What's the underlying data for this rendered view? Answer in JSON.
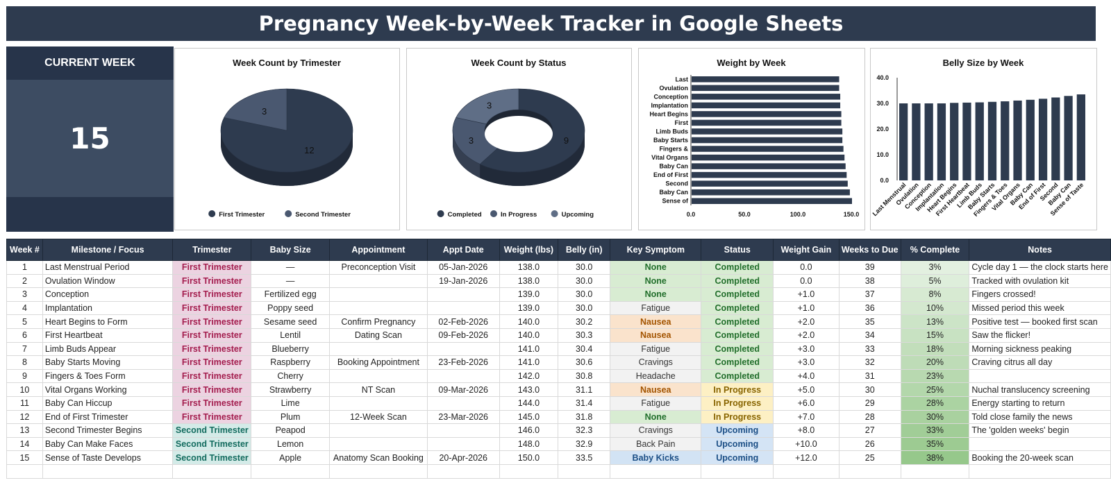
{
  "title": "Pregnancy Week-by-Week Tracker in Google Sheets",
  "current_week": {
    "label": "CURRENT WEEK",
    "value": "15"
  },
  "colors": {
    "navy": "#2e3b4f",
    "slate": "#4a5870",
    "steel": "#5f6e86"
  },
  "chart_data": [
    {
      "type": "pie",
      "title": "Week Count by Trimester",
      "categories": [
        "First Trimester",
        "Second Trimester"
      ],
      "values": [
        12,
        3
      ],
      "legend": "bottom"
    },
    {
      "type": "pie",
      "title": "Week Count by Status",
      "categories": [
        "Completed",
        "In Progress",
        "Upcoming"
      ],
      "values": [
        9,
        3,
        3
      ],
      "legend": "bottom"
    },
    {
      "type": "bar",
      "orientation": "horizontal",
      "title": "Weight by Week",
      "categories": [
        "Last",
        "Ovulation",
        "Conception",
        "Implantation",
        "Heart Begins",
        "First",
        "Limb Buds",
        "Baby Starts",
        "Fingers &",
        "Vital Organs",
        "Baby Can",
        "End of First",
        "Second",
        "Baby Can",
        "Sense of"
      ],
      "values": [
        138.0,
        138.0,
        139.0,
        139.0,
        140.0,
        140.0,
        141.0,
        141.0,
        142.0,
        143.0,
        144.0,
        145.0,
        146.0,
        148.0,
        150.0
      ],
      "ticks": [
        "0.0",
        "50.0",
        "100.0",
        "150.0"
      ],
      "xlim": [
        0,
        150
      ]
    },
    {
      "type": "bar",
      "title": "Belly Size by Week",
      "categories": [
        "Last Menstrual",
        "Ovulation",
        "Conception",
        "Implantation",
        "Heart Begins",
        "First Heartbeat",
        "Limb Buds",
        "Baby Starts",
        "Fingers & Toes",
        "Vital Organs",
        "Baby Can",
        "End of First",
        "Second",
        "Baby Can",
        "Sense of Taste"
      ],
      "values": [
        30.0,
        30.0,
        30.0,
        30.0,
        30.2,
        30.3,
        30.4,
        30.6,
        30.8,
        31.1,
        31.4,
        31.8,
        32.3,
        32.9,
        33.5
      ],
      "ticks": [
        "0.0",
        "10.0",
        "20.0",
        "30.0",
        "40.0"
      ],
      "ylim": [
        0,
        40
      ]
    }
  ],
  "table": {
    "headers": [
      "Week #",
      "Milestone / Focus",
      "Trimester",
      "Baby Size",
      "Appointment",
      "Appt Date",
      "Weight (lbs)",
      "Belly (in)",
      "Key Symptom",
      "Status",
      "Weight Gain",
      "Weeks to Due",
      "% Complete",
      "Notes"
    ],
    "rows": [
      [
        "1",
        "Last Menstrual Period",
        "First Trimester",
        "—",
        "Preconception Visit",
        "05-Jan-2026",
        "138.0",
        "30.0",
        "None",
        "Completed",
        "0.0",
        "39",
        "3%",
        "Cycle day 1 — the clock starts here"
      ],
      [
        "2",
        "Ovulation Window",
        "First Trimester",
        "—",
        "",
        "19-Jan-2026",
        "138.0",
        "30.0",
        "None",
        "Completed",
        "0.0",
        "38",
        "5%",
        "Tracked with ovulation kit"
      ],
      [
        "3",
        "Conception",
        "First Trimester",
        "Fertilized egg",
        "",
        "",
        "139.0",
        "30.0",
        "None",
        "Completed",
        "+1.0",
        "37",
        "8%",
        "Fingers crossed!"
      ],
      [
        "4",
        "Implantation",
        "First Trimester",
        "Poppy seed",
        "",
        "",
        "139.0",
        "30.0",
        "Fatigue",
        "Completed",
        "+1.0",
        "36",
        "10%",
        "Missed period this week"
      ],
      [
        "5",
        "Heart Begins to Form",
        "First Trimester",
        "Sesame seed",
        "Confirm Pregnancy",
        "02-Feb-2026",
        "140.0",
        "30.2",
        "Nausea",
        "Completed",
        "+2.0",
        "35",
        "13%",
        "Positive test — booked first scan"
      ],
      [
        "6",
        "First Heartbeat",
        "First Trimester",
        "Lentil",
        "Dating Scan",
        "09-Feb-2026",
        "140.0",
        "30.3",
        "Nausea",
        "Completed",
        "+2.0",
        "34",
        "15%",
        "Saw the flicker!"
      ],
      [
        "7",
        "Limb Buds Appear",
        "First Trimester",
        "Blueberry",
        "",
        "",
        "141.0",
        "30.4",
        "Fatigue",
        "Completed",
        "+3.0",
        "33",
        "18%",
        "Morning sickness peaking"
      ],
      [
        "8",
        "Baby Starts Moving",
        "First Trimester",
        "Raspberry",
        "Booking Appointment",
        "23-Feb-2026",
        "141.0",
        "30.6",
        "Cravings",
        "Completed",
        "+3.0",
        "32",
        "20%",
        "Craving citrus all day"
      ],
      [
        "9",
        "Fingers & Toes Form",
        "First Trimester",
        "Cherry",
        "",
        "",
        "142.0",
        "30.8",
        "Headache",
        "Completed",
        "+4.0",
        "31",
        "23%",
        ""
      ],
      [
        "10",
        "Vital Organs Working",
        "First Trimester",
        "Strawberry",
        "NT Scan",
        "09-Mar-2026",
        "143.0",
        "31.1",
        "Nausea",
        "In Progress",
        "+5.0",
        "30",
        "25%",
        "Nuchal translucency screening"
      ],
      [
        "11",
        "Baby Can Hiccup",
        "First Trimester",
        "Lime",
        "",
        "",
        "144.0",
        "31.4",
        "Fatigue",
        "In Progress",
        "+6.0",
        "29",
        "28%",
        "Energy starting to return"
      ],
      [
        "12",
        "End of First Trimester",
        "First Trimester",
        "Plum",
        "12-Week Scan",
        "23-Mar-2026",
        "145.0",
        "31.8",
        "None",
        "In Progress",
        "+7.0",
        "28",
        "30%",
        "Told close family the news"
      ],
      [
        "13",
        "Second Trimester Begins",
        "Second Trimester",
        "Peapod",
        "",
        "",
        "146.0",
        "32.3",
        "Cravings",
        "Upcoming",
        "+8.0",
        "27",
        "33%",
        "The 'golden weeks' begin"
      ],
      [
        "14",
        "Baby Can Make Faces",
        "Second Trimester",
        "Lemon",
        "",
        "",
        "148.0",
        "32.9",
        "Back Pain",
        "Upcoming",
        "+10.0",
        "26",
        "35%",
        ""
      ],
      [
        "15",
        "Sense of Taste Develops",
        "Second Trimester",
        "Apple",
        "Anatomy Scan Booking",
        "20-Apr-2026",
        "150.0",
        "33.5",
        "Baby Kicks",
        "Upcoming",
        "+12.0",
        "25",
        "38%",
        "Booking the 20-week scan"
      ]
    ],
    "progress_fraction": [
      0.03,
      0.05,
      0.08,
      0.1,
      0.13,
      0.15,
      0.18,
      0.2,
      0.23,
      0.25,
      0.28,
      0.3,
      0.33,
      0.35,
      0.38
    ]
  }
}
